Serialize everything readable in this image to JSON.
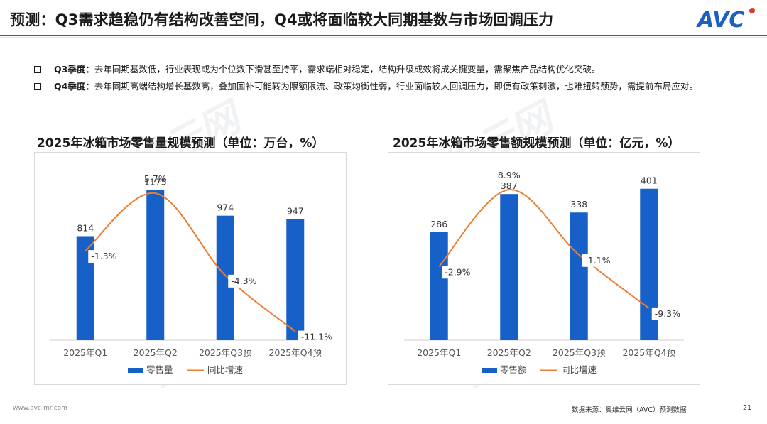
{
  "page": {
    "title": "预测：Q3需求趋稳仍有结构改善空间，Q4或将面临较大同期基数与市场回调压力",
    "logo_text": "AVC",
    "footer_url": "www.avc-mr.com",
    "footer_source": "数据来源：奥维云网（AVC）预测数据",
    "page_number": "21",
    "watermark_cn": "奥维云网",
    "watermark_en": "ALL VIEW CLOUD",
    "accent_color": "#1f5fbf",
    "bar_color": "#1660c8",
    "line_color": "#ed7d31"
  },
  "bullets": [
    {
      "key": "Q3季度：",
      "text": "去年同期基数低，行业表现或为个位数下滑甚至持平，需求端相对稳定，结构升级成效将成关键变量，需聚焦产品结构优化突破。"
    },
    {
      "key": "Q4季度：",
      "text": "去年同期高端结构增长基数高，叠加国补可能转为限额限流、政策均衡性弱，行业面临较大回调压力，即便有政策刺激，也难扭转颓势，需提前布局应对。"
    }
  ],
  "chart_data": [
    {
      "type": "bar",
      "title": "2025年冰箱市场零售量规模预测（单位：万台，%）",
      "categories": [
        "2025年Q1",
        "2025年Q2",
        "2025年Q3预",
        "2025年Q4预"
      ],
      "series": [
        {
          "name": "零售量",
          "type": "bar",
          "values": [
            814,
            1175,
            974,
            947
          ],
          "labels": [
            "814",
            "1175",
            "974",
            "947"
          ]
        },
        {
          "name": "同比增速",
          "type": "line",
          "values": [
            -1.3,
            5.7,
            -4.3,
            -11.1
          ],
          "labels": [
            "-1.3%",
            "5.7%",
            "-4.3%",
            "-11.1%"
          ]
        }
      ],
      "bar_range": [
        0,
        1300
      ],
      "line_range": [
        -12,
        7
      ],
      "legend": "bottom"
    },
    {
      "type": "bar",
      "title": "2025年冰箱市场零售额规模预测（单位：亿元，%）",
      "categories": [
        "2025年Q1",
        "2025年Q2",
        "2025年Q3预",
        "2025年Q4预"
      ],
      "series": [
        {
          "name": "零售额",
          "type": "bar",
          "values": [
            286,
            387,
            338,
            401
          ],
          "labels": [
            "286",
            "387",
            "338",
            "401"
          ]
        },
        {
          "name": "同比增速",
          "type": "line",
          "values": [
            -2.9,
            8.9,
            -1.1,
            -9.3
          ],
          "labels": [
            "-2.9%",
            "8.9%",
            "-1.1%",
            "-9.3%"
          ]
        }
      ],
      "bar_range": [
        0,
        440
      ],
      "line_range": [
        -14,
        10
      ],
      "legend": "bottom"
    }
  ]
}
